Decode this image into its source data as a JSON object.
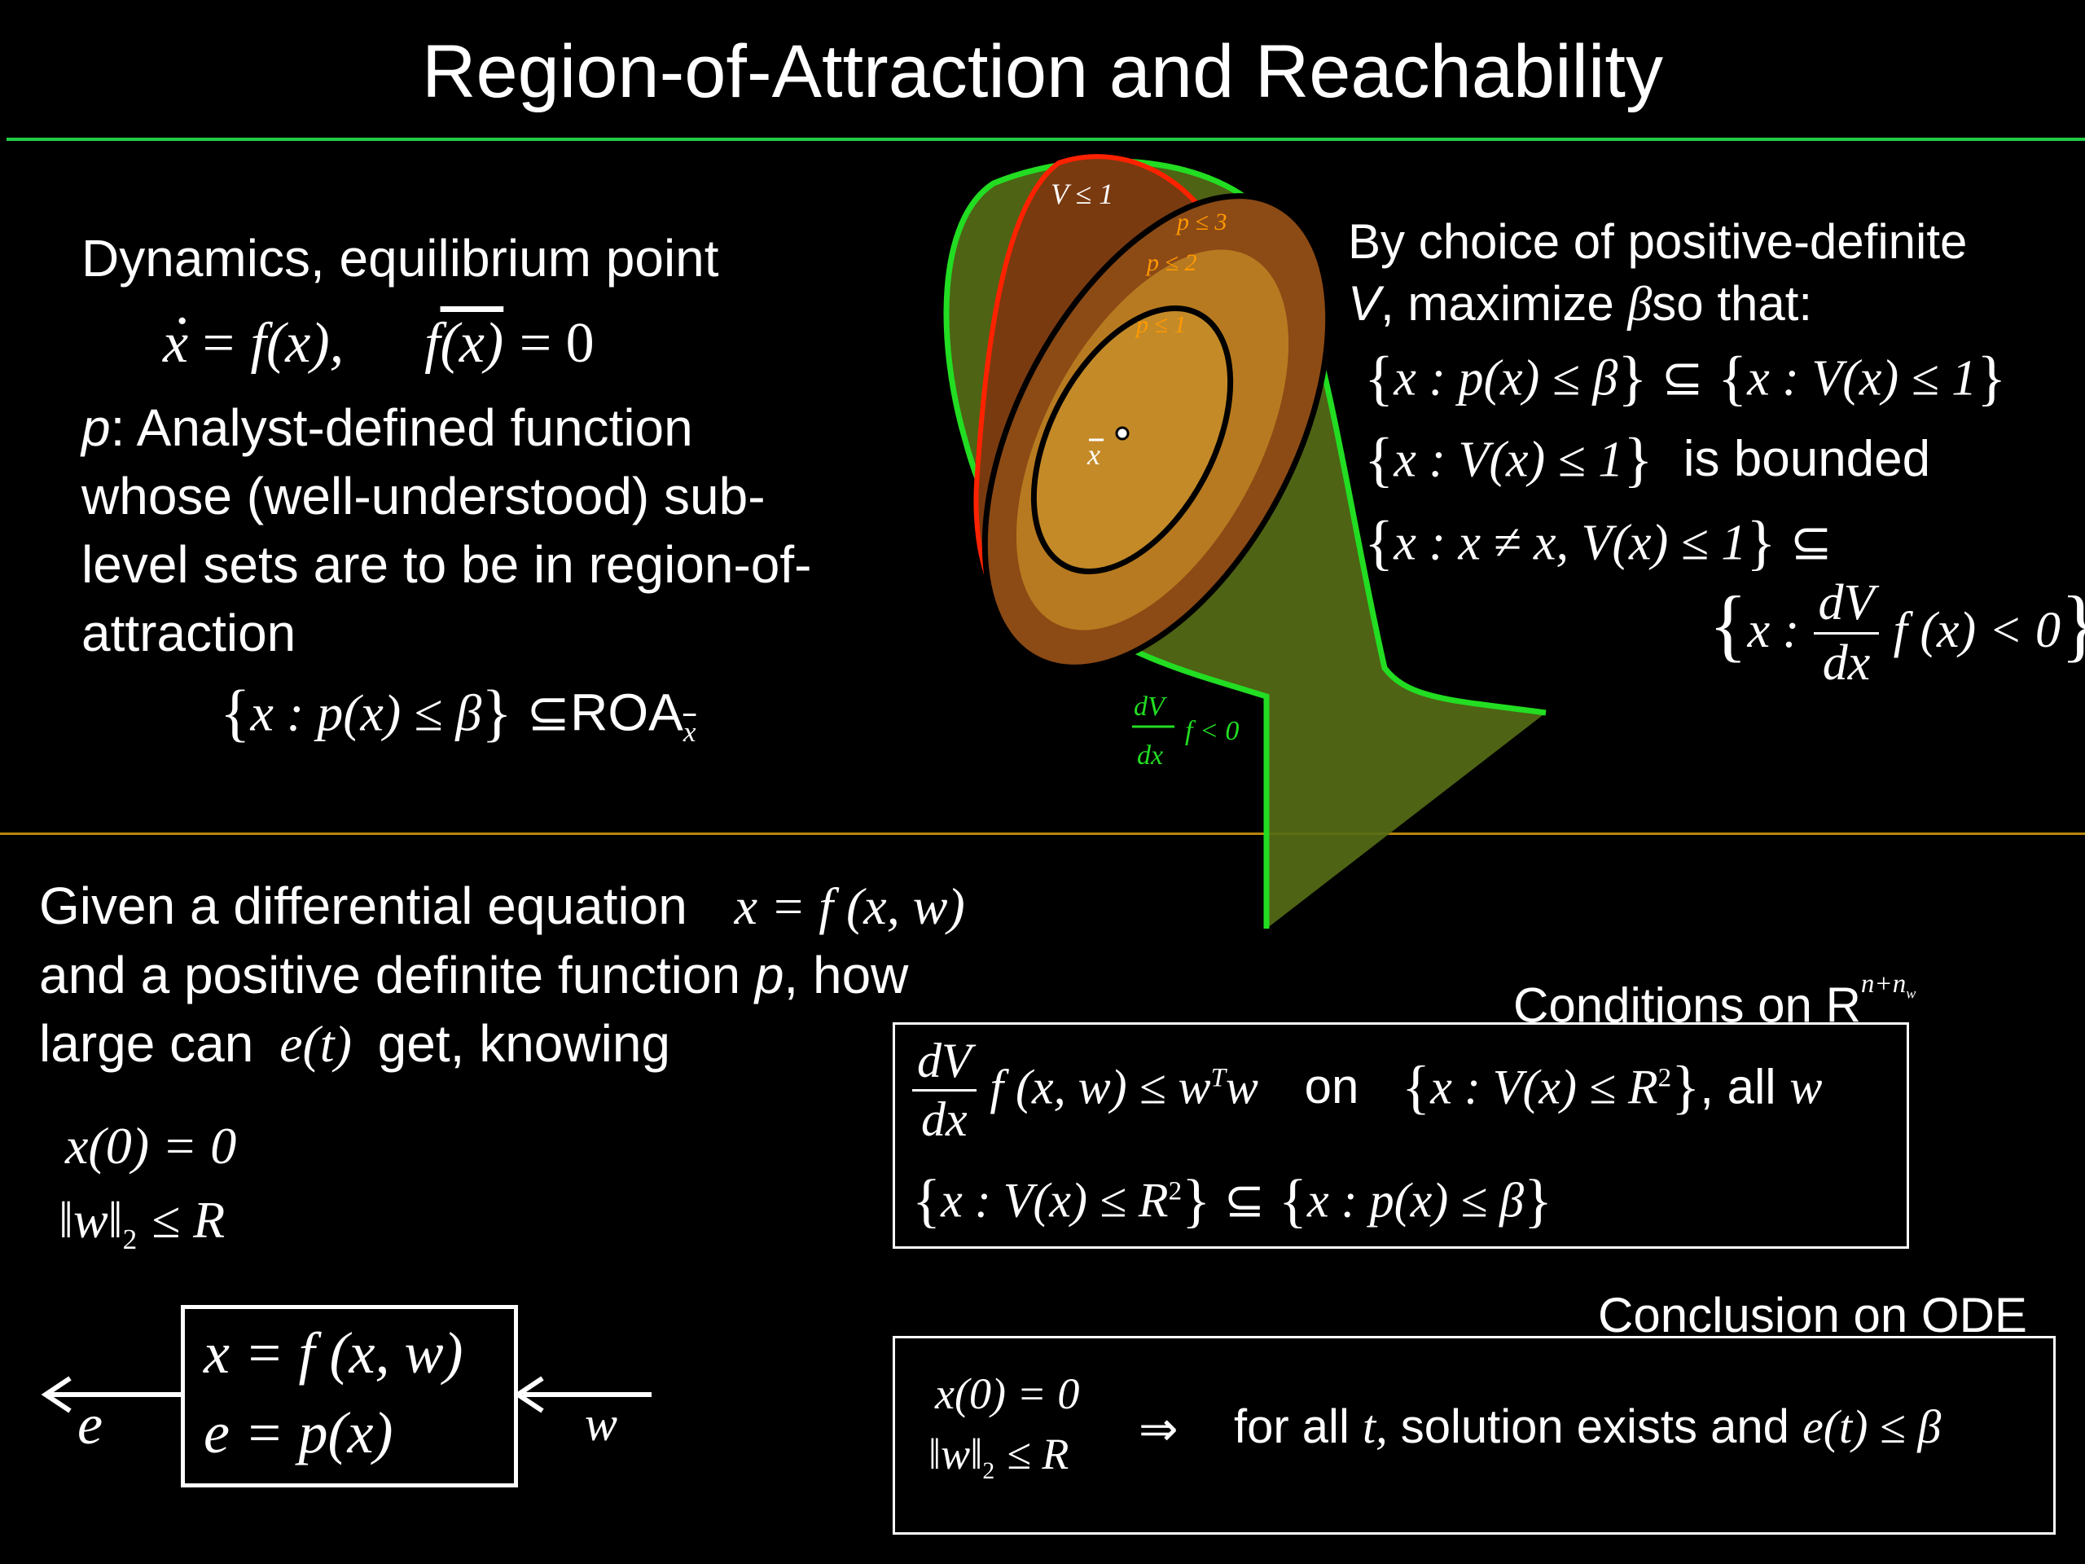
{
  "title": "Region-of-Attraction and Reachability",
  "colors": {
    "rule_top": "#22cc44",
    "rule_mid": "#b8860b",
    "set_green": "#22dd22",
    "set_red": "#ff2200",
    "label_orange": "#ff9900"
  },
  "left_top": {
    "line1": "Dynamics, equilibrium point",
    "eq": {
      "x": "x",
      "eq_sign": "=",
      "f": "f",
      "x_arg": "(x),",
      "f2": "f",
      "xbar_arg": "(x)",
      "zero": "= 0"
    },
    "p_label": "p",
    "p_text1": ": Analyst-defined function",
    "p_text2": "whose (well-understood) sub-",
    "p_text3": "level sets are to be in region-of-",
    "p_text4": "attraction",
    "roa_set": "x : p(x) ≤ β",
    "subset": "⊆",
    "roa_text": "ROA",
    "roa_sub": "x"
  },
  "diagram": {
    "v_label": "V ≤ 1",
    "p3_label": "p ≤ 3",
    "p2_label": "p ≤ 2",
    "p1_label": "p ≤ 1",
    "xbar_label": "x",
    "dv": "dV",
    "dx": "dx",
    "f_label": "f < 0"
  },
  "right_top": {
    "line1": "By choice of positive-definite",
    "v": "V",
    "line2a": ", maximize",
    "beta": "β",
    "line2b": "so that:",
    "cond1_l": "x : p(x) ≤ β",
    "cond1_r": "x : V(x) ≤ 1",
    "cond2": "x : V(x) ≤ 1",
    "cond2_text": "is bounded",
    "cond3": "x : x ≠ x, V(x) ≤ 1",
    "cond4_x": "x :",
    "cond4_num": "dV",
    "cond4_den": "dx",
    "cond4_f": "f (x) < 0"
  },
  "bottom_left": {
    "q1": "Given a differential equation",
    "q1_eq": "x = f (x, w)",
    "q2a": "and a positive definite function",
    "q2_p": "p",
    "q2b": ", how",
    "q3a": "large can",
    "q3_e": "e(t)",
    "q3b": "get, knowing",
    "given1": "x(0) = 0",
    "given2_w": "w",
    "given2_sub": "2",
    "given2_rest": "≤ R",
    "block_eq1": "x = f (x, w)",
    "block_eq2": "e = p(x)",
    "e_label": "e",
    "w_label": "w"
  },
  "conditions": {
    "label": "Conditions on R",
    "label_sup": "n+n",
    "label_sup_sub": "w",
    "num": "dV",
    "den": "dx",
    "ineq": "f (x, w) ≤ w",
    "ineq_sup": "T",
    "ineq_w": "w",
    "on": "on",
    "set1": "x : V(x) ≤ R",
    "set1_sup": "2",
    "all": ", all",
    "all_w": "w",
    "set2_l": "x : V(x) ≤ R",
    "set2_sup": "2",
    "set2_r": "x : p(x) ≤ β"
  },
  "conclusion": {
    "label": "Conclusion on ODE",
    "c1": "x(0) = 0",
    "c2_w": "w",
    "c2_sub": "2",
    "c2_rest": "≤ R",
    "implies": "⇒",
    "for_all": "for all",
    "t": "t,",
    "text": "solution exists and",
    "et": "e(t) ≤ β"
  }
}
